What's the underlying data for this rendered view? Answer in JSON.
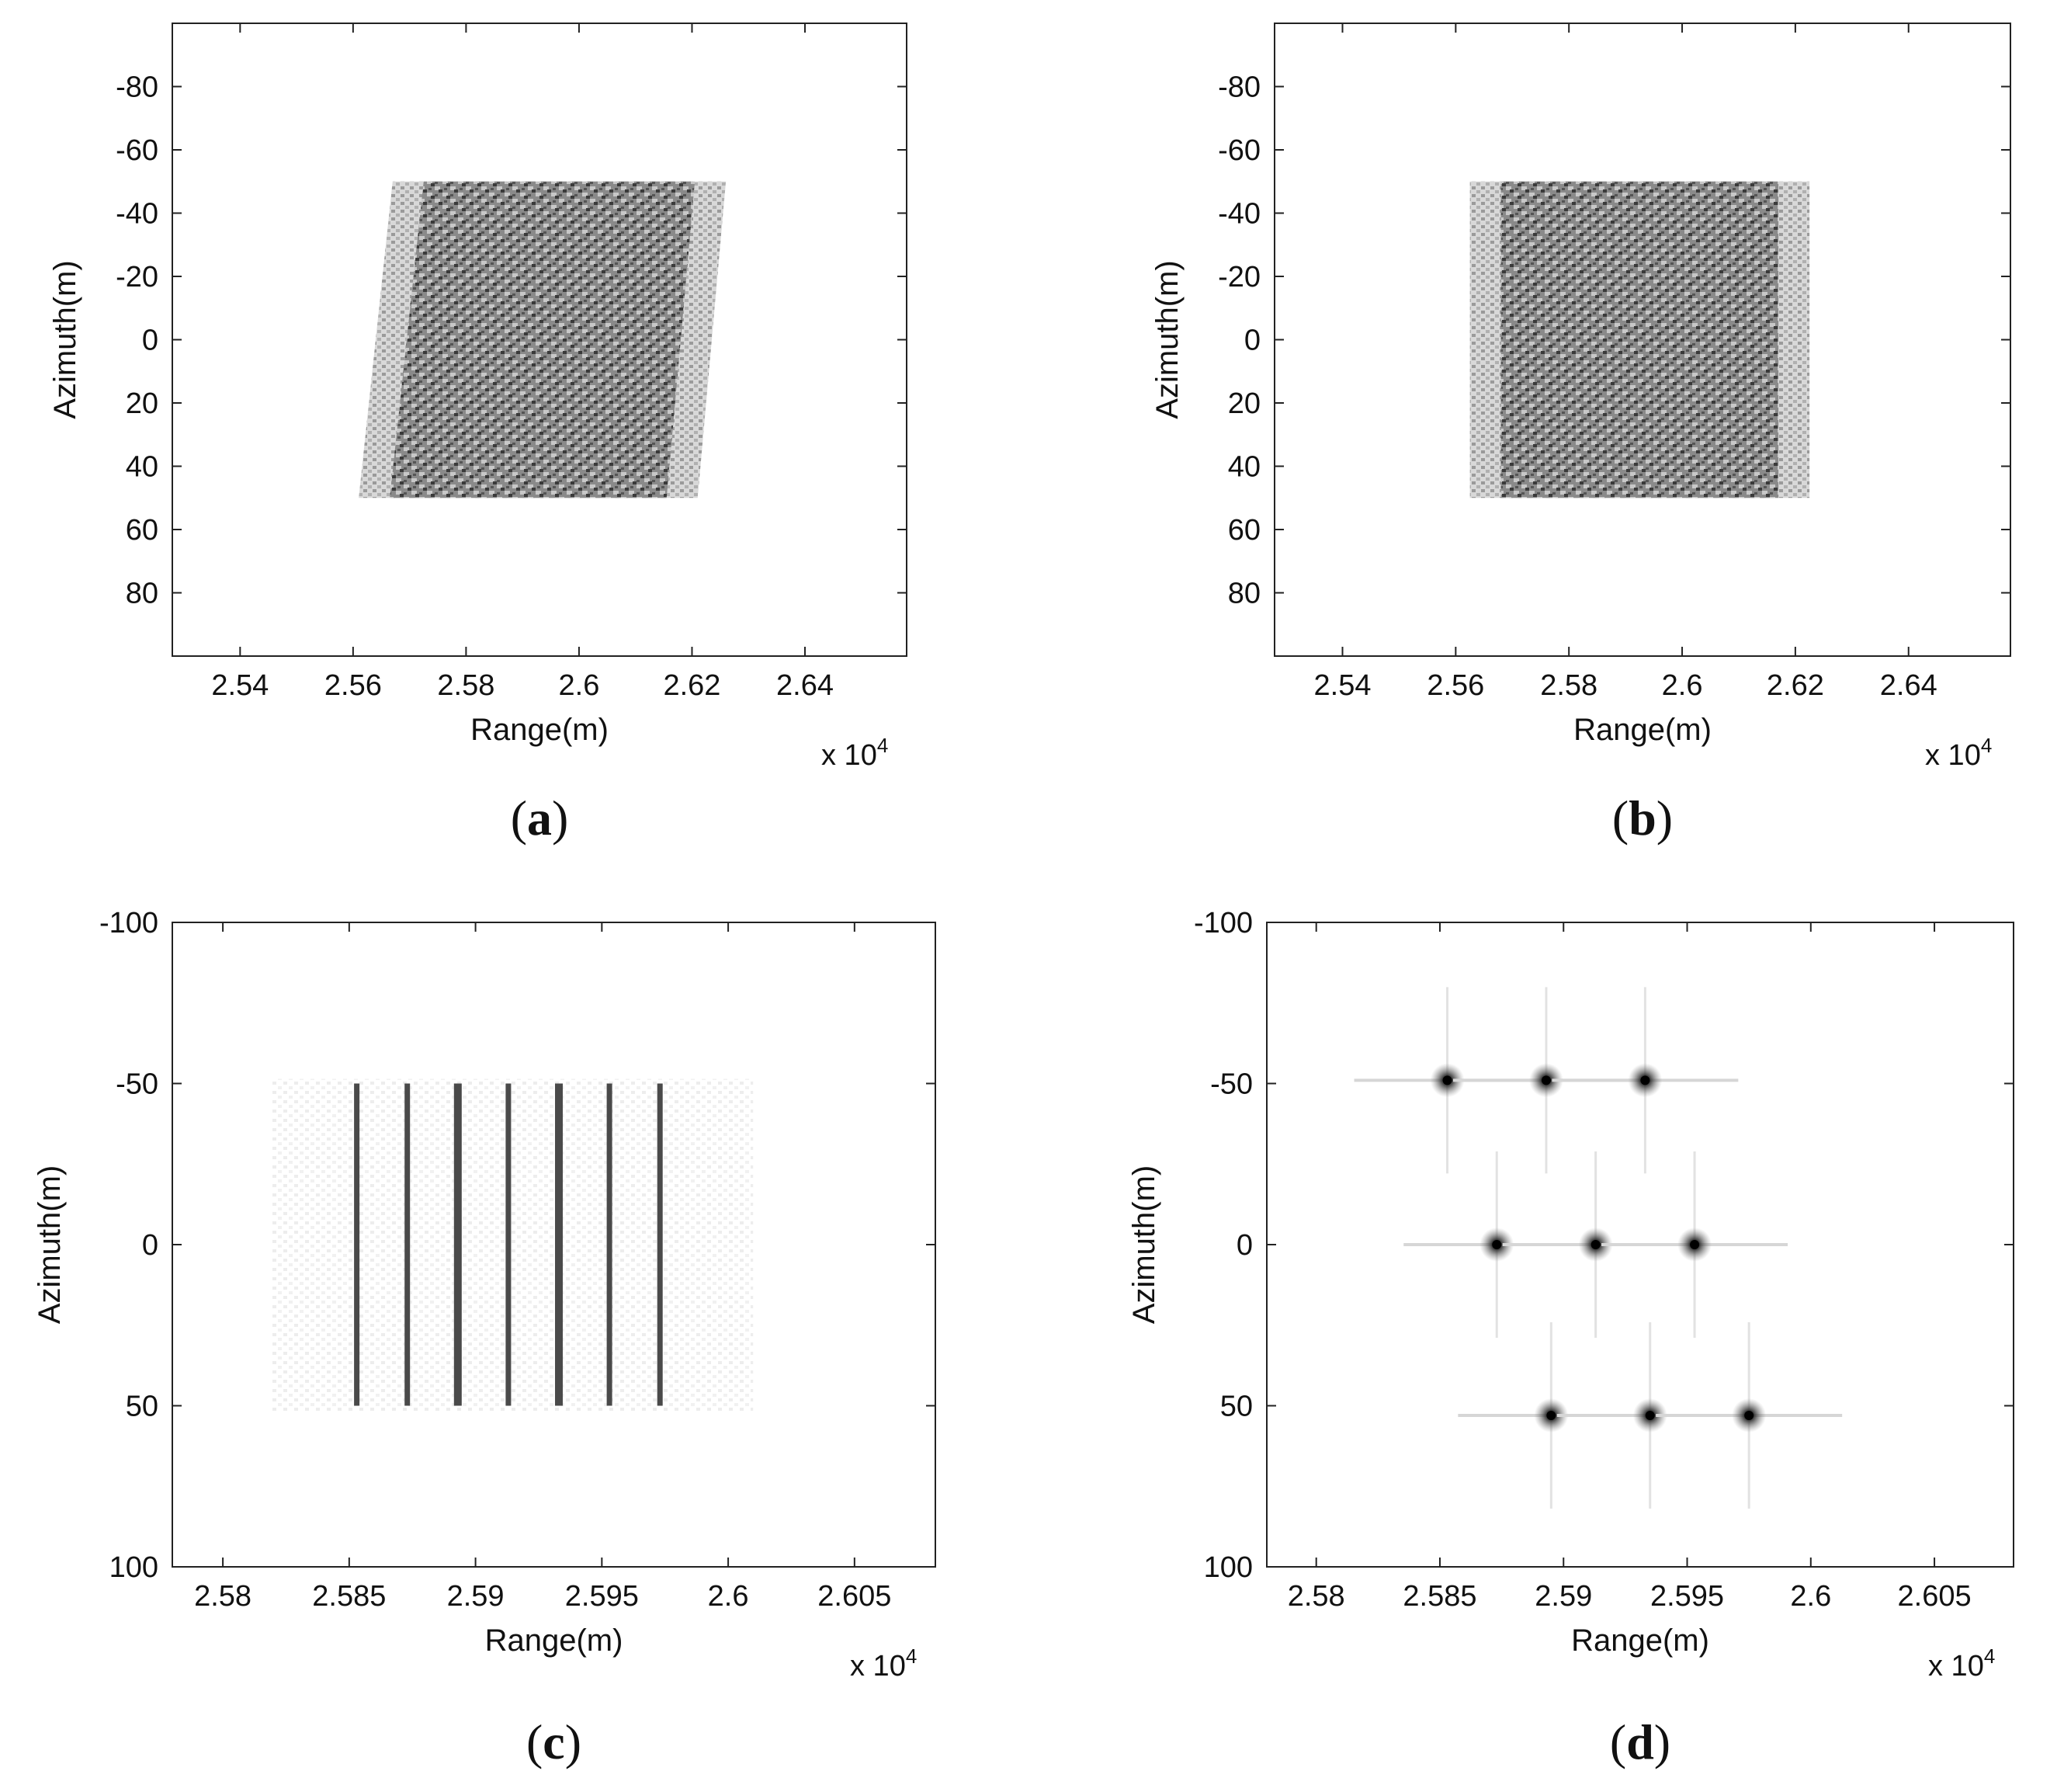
{
  "chart_data": [
    {
      "id": "a",
      "type": "heatmap",
      "panel_label": "a",
      "xlabel": "Range(m)",
      "ylabel": "Azimuth(m)",
      "x_exponent": "x 10",
      "x_exponent_power": "4",
      "xlim": [
        2.528,
        2.658
      ],
      "ylim": [
        -100,
        100
      ],
      "y_reversed": true,
      "x_ticks": [
        2.54,
        2.56,
        2.58,
        2.6,
        2.62,
        2.64
      ],
      "x_tick_labels": [
        "2.54",
        "2.56",
        "2.58",
        "2.6",
        "2.62",
        "2.64"
      ],
      "y_ticks": [
        -80,
        -60,
        -40,
        -20,
        0,
        20,
        40,
        60,
        80
      ],
      "y_tick_labels": [
        "-80",
        "-60",
        "-40",
        "-20",
        "0",
        "20",
        "40",
        "60",
        "80"
      ],
      "image_region": {
        "x_top": [
          2.567,
          2.626
        ],
        "x_bottom": [
          2.561,
          2.621
        ],
        "y": [
          -50,
          50
        ],
        "skewed": true
      }
    },
    {
      "id": "b",
      "type": "heatmap",
      "panel_label": "b",
      "xlabel": "Range(m)",
      "ylabel": "Azimuth(m)",
      "x_exponent": "x 10",
      "x_exponent_power": "4",
      "xlim": [
        2.528,
        2.658
      ],
      "ylim": [
        -100,
        100
      ],
      "y_reversed": true,
      "x_ticks": [
        2.54,
        2.56,
        2.58,
        2.6,
        2.62,
        2.64
      ],
      "x_tick_labels": [
        "2.54",
        "2.56",
        "2.58",
        "2.6",
        "2.62",
        "2.64"
      ],
      "y_ticks": [
        -80,
        -60,
        -40,
        -20,
        0,
        20,
        40,
        60,
        80
      ],
      "y_tick_labels": [
        "-80",
        "-60",
        "-40",
        "-20",
        "0",
        "20",
        "40",
        "60",
        "80"
      ],
      "image_region": {
        "x_top": [
          2.5625,
          2.6225
        ],
        "x_bottom": [
          2.5625,
          2.6225
        ],
        "y": [
          -50,
          50
        ],
        "skewed": false
      }
    },
    {
      "id": "c",
      "type": "heatmap",
      "panel_label": "c",
      "xlabel": "Range(m)",
      "ylabel": "Azimuth(m)",
      "x_exponent": "x 10",
      "x_exponent_power": "4",
      "xlim": [
        2.578,
        2.6082
      ],
      "ylim": [
        -100,
        100
      ],
      "y_reversed": true,
      "x_ticks": [
        2.58,
        2.585,
        2.59,
        2.595,
        2.6,
        2.605
      ],
      "x_tick_labels": [
        "2.58",
        "2.585",
        "2.59",
        "2.595",
        "2.6",
        "2.605"
      ],
      "y_ticks": [
        -100,
        -50,
        0,
        50,
        100
      ],
      "y_tick_labels": [
        "-100",
        "-50",
        "0",
        "50",
        "100"
      ],
      "lines": {
        "x": [
          2.5853,
          2.5873,
          2.5893,
          2.5913,
          2.5933,
          2.5953,
          2.5973
        ],
        "y": [
          -50,
          50
        ]
      }
    },
    {
      "id": "d",
      "type": "heatmap",
      "panel_label": "d",
      "xlabel": "Range(m)",
      "ylabel": "Azimuth(m)",
      "x_exponent": "x 10",
      "x_exponent_power": "4",
      "xlim": [
        2.578,
        2.6082
      ],
      "ylim": [
        -100,
        100
      ],
      "y_reversed": true,
      "x_ticks": [
        2.58,
        2.585,
        2.59,
        2.595,
        2.6,
        2.605
      ],
      "x_tick_labels": [
        "2.58",
        "2.585",
        "2.59",
        "2.595",
        "2.6",
        "2.605"
      ],
      "y_ticks": [
        -100,
        -50,
        0,
        50,
        100
      ],
      "y_tick_labels": [
        "-100",
        "-50",
        "0",
        "50",
        "100"
      ],
      "points": [
        {
          "x": 2.5853,
          "y": -51
        },
        {
          "x": 2.5893,
          "y": -51
        },
        {
          "x": 2.5933,
          "y": -51
        },
        {
          "x": 2.5873,
          "y": 0
        },
        {
          "x": 2.5913,
          "y": 0
        },
        {
          "x": 2.5953,
          "y": 0
        },
        {
          "x": 2.5895,
          "y": 53
        },
        {
          "x": 2.5935,
          "y": 53
        },
        {
          "x": 2.5975,
          "y": 53
        }
      ]
    }
  ]
}
